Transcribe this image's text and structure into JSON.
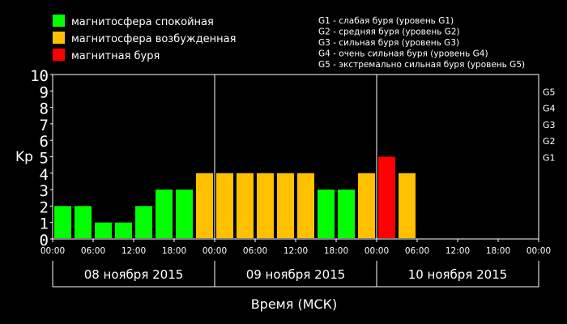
{
  "chart_data": {
    "type": "bar",
    "ylabel": "Kp",
    "xlabel": "Время (МСК)",
    "ylim": [
      0,
      10
    ],
    "y_ticks": [
      "0",
      "1",
      "2",
      "3",
      "4",
      "5",
      "6",
      "7",
      "8",
      "9",
      "10"
    ],
    "g_levels": [
      {
        "label": "G1",
        "value": 5
      },
      {
        "label": "G2",
        "value": 6
      },
      {
        "label": "G3",
        "value": 7
      },
      {
        "label": "G4",
        "value": 8
      },
      {
        "label": "G5",
        "value": 9
      }
    ],
    "time_ticks": [
      "00:00",
      "06:00",
      "12:00",
      "18:00",
      "00:00",
      "06:00",
      "12:00",
      "18:00",
      "00:00",
      "06:00",
      "12:00",
      "18:00",
      "00:00"
    ],
    "days": [
      "08 ноября 2015",
      "09 ноября 2015",
      "10 ноября 2015"
    ],
    "values": [
      2,
      2,
      1,
      1,
      2,
      3,
      3,
      4,
      4,
      4,
      4,
      4,
      4,
      3,
      3,
      4,
      5,
      4
    ],
    "statuses": [
      "quiet",
      "quiet",
      "quiet",
      "quiet",
      "quiet",
      "quiet",
      "quiet",
      "disturbed",
      "disturbed",
      "disturbed",
      "disturbed",
      "disturbed",
      "disturbed",
      "quiet",
      "quiet",
      "disturbed",
      "storm",
      "disturbed"
    ],
    "legend": [
      {
        "key": "quiet",
        "label": "магнитосфера спокойная",
        "color": "#00ff00"
      },
      {
        "key": "disturbed",
        "label": "магнитосфера возбужденная",
        "color": "#ffc000"
      },
      {
        "key": "storm",
        "label": "магнитная буря",
        "color": "#ff0000"
      }
    ],
    "g_legend": [
      "G1 - слабая буря (уровень G1)",
      "G2 - средняя буря (уровень G2)",
      "G3 - сильная буря (уровень G3)",
      "G4 - очень сильная буря (уровень G4)",
      "G5 - экстремально сильная буря (уровень G5)"
    ],
    "colors": {
      "axis_label": "#ff8c00",
      "frame": "#ffffff",
      "background": "#000000"
    },
    "grid": false
  }
}
